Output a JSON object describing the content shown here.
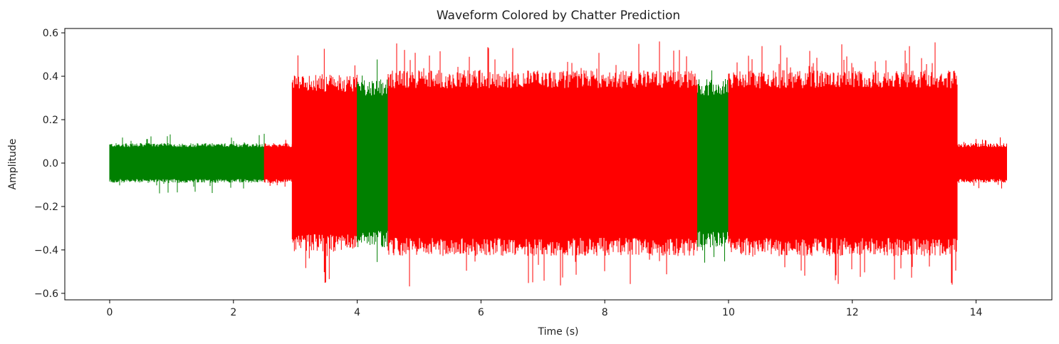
{
  "chart_data": {
    "type": "line",
    "title": "Waveform Colored by Chatter Prediction",
    "xlabel": "Time (s)",
    "ylabel": "Amplitude",
    "xlim": [
      -0.725,
      15.225
    ],
    "ylim": [
      -0.63,
      0.62
    ],
    "x_ticks": [
      0,
      2,
      4,
      6,
      8,
      10,
      12,
      14
    ],
    "x_tick_labels": [
      "0",
      "2",
      "4",
      "6",
      "8",
      "10",
      "12",
      "14"
    ],
    "y_ticks": [
      -0.6,
      -0.4,
      -0.2,
      0.0,
      0.2,
      0.4,
      0.6
    ],
    "y_tick_labels": [
      "−0.6",
      "−0.4",
      "−0.2",
      "0.0",
      "0.2",
      "0.4",
      "0.6"
    ],
    "grid": false,
    "colors": {
      "green": "#008000",
      "red": "#ff0000"
    },
    "segments": [
      {
        "start": 0.0,
        "end": 2.5,
        "color": "green",
        "amplitude": 0.09,
        "peak": 0.14
      },
      {
        "start": 2.5,
        "end": 2.95,
        "color": "red",
        "amplitude": 0.09,
        "peak": 0.11
      },
      {
        "start": 2.95,
        "end": 4.0,
        "color": "red",
        "amplitude": 0.4,
        "peak": 0.56
      },
      {
        "start": 4.0,
        "end": 4.5,
        "color": "green",
        "amplitude": 0.38,
        "peak": 0.51
      },
      {
        "start": 4.5,
        "end": 9.5,
        "color": "red",
        "amplitude": 0.42,
        "peak": 0.57
      },
      {
        "start": 9.5,
        "end": 10.0,
        "color": "green",
        "amplitude": 0.38,
        "peak": 0.46
      },
      {
        "start": 10.0,
        "end": 13.7,
        "color": "red",
        "amplitude": 0.42,
        "peak": 0.56
      },
      {
        "start": 13.7,
        "end": 14.5,
        "color": "red",
        "amplitude": 0.09,
        "peak": 0.12
      }
    ]
  }
}
